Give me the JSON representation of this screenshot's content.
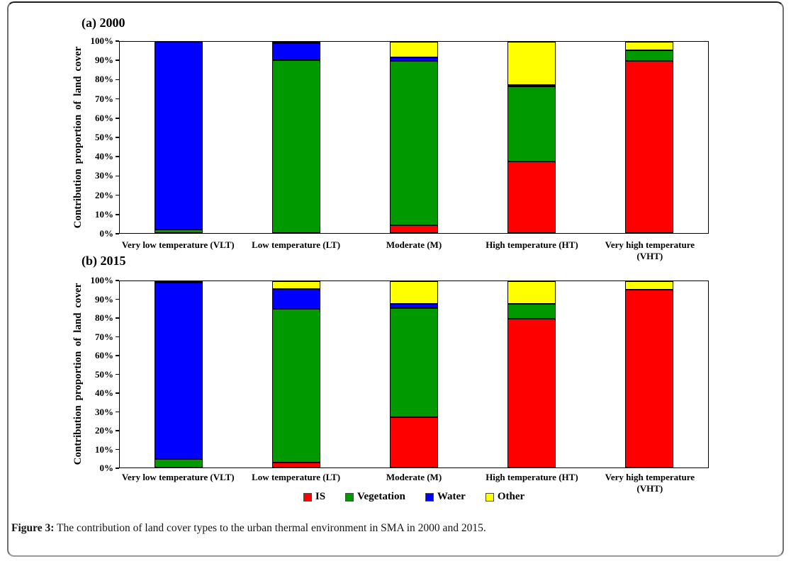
{
  "caption": {
    "label": "Figure 3:",
    "text": " The contribution of land cover types to the urban thermal environment in SMA in 2000 and 2015."
  },
  "colors": {
    "is": "#FF0000",
    "vegetation": "#009A00",
    "water": "#0000FF",
    "other": "#FFFF00",
    "axis": "#000000"
  },
  "legend": [
    {
      "key": "is",
      "label": "IS",
      "color": "#FF0000"
    },
    {
      "key": "vegetation",
      "label": "Vegetation",
      "color": "#009A00"
    },
    {
      "key": "water",
      "label": "Water",
      "color": "#0000FF"
    },
    {
      "key": "other",
      "label": "Other",
      "color": "#FFFF00"
    }
  ],
  "chart_data": [
    {
      "type": "bar",
      "stacked": true,
      "title": "(a) 2000",
      "ylabel": "Contribution proportion of land cover",
      "xlabel": "",
      "ylim": [
        0,
        100
      ],
      "ytick_step": 10,
      "ytick_suffix": "%",
      "grid": false,
      "legend_position": "bottom",
      "categories": [
        "Very low temperature (VLT)",
        "Low temperature (LT)",
        "Moderate (M)",
        "High temperature (HT)",
        "Very high temperature (VHT)"
      ],
      "series": [
        {
          "name": "IS",
          "color": "#FF0000",
          "values": [
            0,
            0,
            4,
            37.5,
            90
          ]
        },
        {
          "name": "Vegetation",
          "color": "#009A00",
          "values": [
            2,
            90.5,
            86,
            39,
            5.5
          ]
        },
        {
          "name": "Water",
          "color": "#0000FF",
          "values": [
            98,
            9,
            2,
            1,
            0
          ]
        },
        {
          "name": "Other",
          "color": "#FFFF00",
          "values": [
            0,
            0.5,
            8,
            22.5,
            4.5
          ]
        }
      ]
    },
    {
      "type": "bar",
      "stacked": true,
      "title": "(b) 2015",
      "ylabel": "Contribution proportion of land cover",
      "xlabel": "",
      "ylim": [
        0,
        100
      ],
      "ytick_step": 10,
      "ytick_suffix": "%",
      "grid": false,
      "legend_position": "bottom",
      "categories": [
        "Very low temperature (VLT)",
        "Low temperature (LT)",
        "Moderate (M)",
        "High temperature (HT)",
        "Very high temperature (VHT)"
      ],
      "series": [
        {
          "name": "IS",
          "color": "#FF0000",
          "values": [
            0,
            2.5,
            27,
            80,
            95.5
          ]
        },
        {
          "name": "Vegetation",
          "color": "#009A00",
          "values": [
            4.5,
            82.5,
            58.5,
            8,
            0
          ]
        },
        {
          "name": "Water",
          "color": "#0000FF",
          "values": [
            95,
            11,
            2.5,
            0,
            0
          ]
        },
        {
          "name": "Other",
          "color": "#FFFF00",
          "values": [
            0.5,
            4,
            12,
            12,
            4.5
          ]
        }
      ]
    }
  ]
}
